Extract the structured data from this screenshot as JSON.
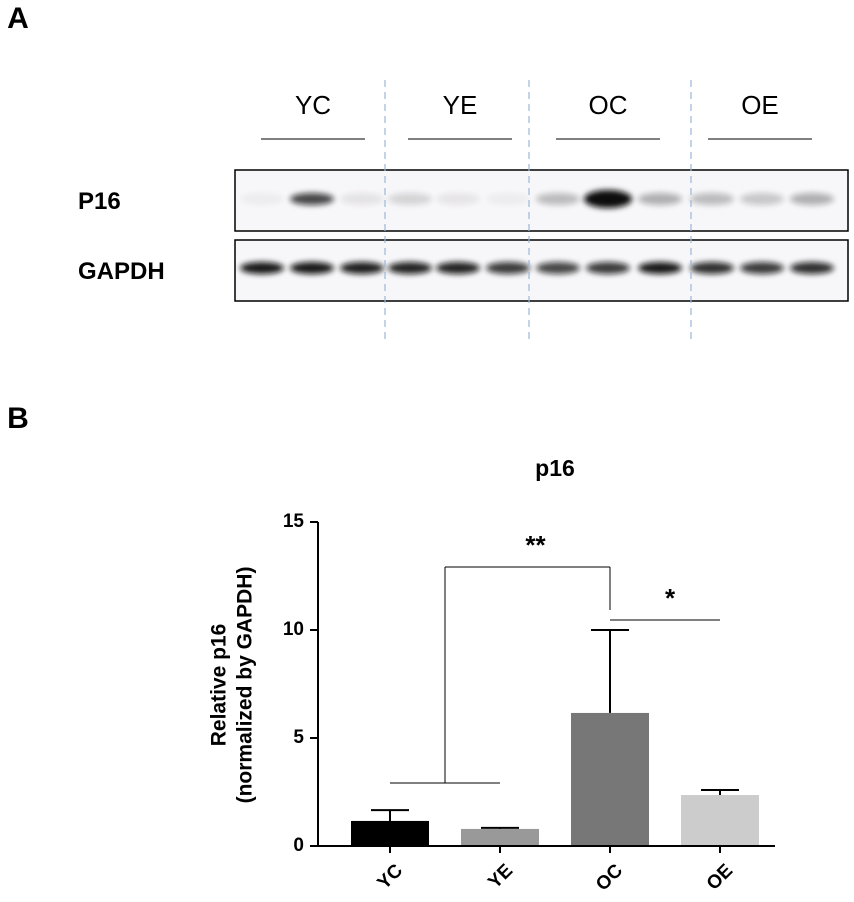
{
  "panel_a": {
    "label": "A",
    "groups": [
      "YC",
      "YE",
      "OC",
      "OE"
    ],
    "rows": [
      "P16",
      "GAPDH"
    ]
  },
  "panel_b": {
    "label": "B"
  },
  "chart_data": {
    "type": "bar",
    "title": "p16",
    "ylabel": [
      "Relative p16",
      "(normalized by GAPDH)"
    ],
    "categories": [
      "YC",
      "YE",
      "OC",
      "OE"
    ],
    "values": [
      1.16,
      0.79,
      6.16,
      2.36
    ],
    "errors": [
      0.5,
      0.05,
      3.84,
      0.23
    ],
    "colors": [
      "#000000",
      "#999999",
      "#777777",
      "#cccccc"
    ],
    "ylim": [
      0,
      15
    ],
    "yticks": [
      0,
      5,
      10,
      15
    ],
    "annotations": [
      "**",
      "*"
    ]
  }
}
